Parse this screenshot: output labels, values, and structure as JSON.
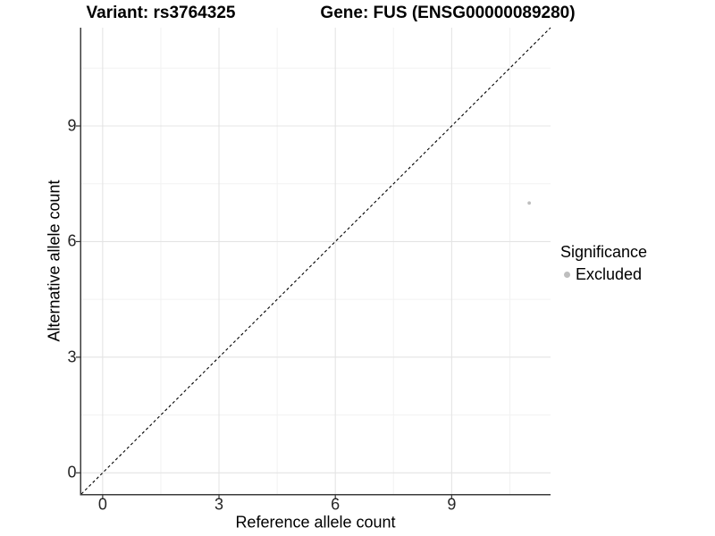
{
  "chart_data": {
    "type": "scatter",
    "title_left": "Variant: rs3764325",
    "title_right": "Gene: FUS (ENSG00000089280)",
    "xlabel": "Reference allele count",
    "ylabel": "Alternative allele count",
    "xlim": [
      -0.55,
      11.55
    ],
    "ylim": [
      -0.55,
      11.55
    ],
    "xticks": [
      0,
      3,
      6,
      9
    ],
    "yticks": [
      0,
      3,
      6,
      9
    ],
    "xticks_minor": [
      1.5,
      4.5,
      7.5,
      10.5
    ],
    "yticks_minor": [
      1.5,
      4.5,
      7.5,
      10.5
    ],
    "grid": true,
    "points": [
      {
        "x": 11,
        "y": 7,
        "significance": "Excluded"
      }
    ],
    "identity_line": {
      "slope": 1,
      "intercept": 0,
      "style": "dashed"
    },
    "legend": {
      "title": "Significance",
      "position": "right",
      "entries": [
        {
          "label": "Excluded",
          "color": "#bebebe"
        }
      ]
    },
    "colors": {
      "point_excluded": "#bebebe",
      "grid_major": "#e4e4e4",
      "grid_minor": "#f2f2f2",
      "axis_line": "#3c3c3c",
      "tick_mark": "#333333",
      "dashed_line": "#000000"
    }
  }
}
